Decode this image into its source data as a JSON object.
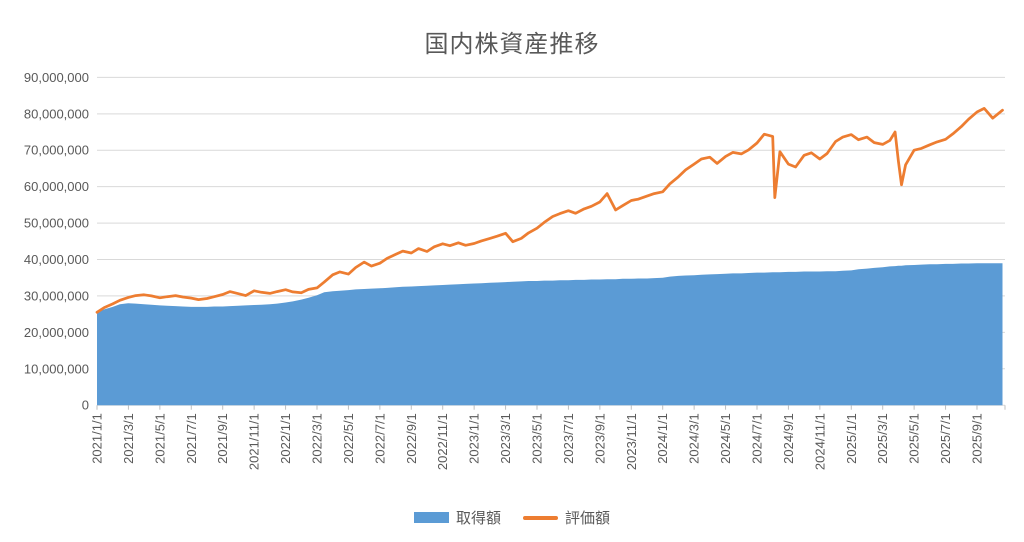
{
  "title": "国内株資産推移",
  "legend": {
    "acquisition_label": "取得額",
    "evaluation_label": "評価額"
  },
  "colors": {
    "acquisition_area": "#5B9BD5",
    "evaluation_line": "#ED7D31",
    "text_gray": "#595959",
    "gridline": "#D9D9D9",
    "axis_tick": "#BFBFBF"
  },
  "chart_data": {
    "type": "area",
    "subtype": "area series (取得額) + line series (評価額) combo",
    "title": "国内株資産推移",
    "xlabel": "",
    "ylabel": "",
    "unit": "JPY",
    "value_scale": 1000000,
    "ylim": [
      0,
      90000000
    ],
    "y_axis": {
      "min": 0,
      "max": 90000000,
      "step": 10000000,
      "tick_labels": [
        "0",
        "10,000,000",
        "20,000,000",
        "30,000,000",
        "40,000,000",
        "50,000,000",
        "60,000,000",
        "70,000,000",
        "80,000,000",
        "90,000,000"
      ]
    },
    "x_axis": {
      "tick_labels": [
        "2021/1/1",
        "2021/3/1",
        "2021/5/1",
        "2021/7/1",
        "2021/9/1",
        "2021/11/1",
        "2022/1/1",
        "2022/3/1",
        "2022/5/1",
        "2022/7/1",
        "2022/9/1",
        "2022/11/1",
        "2023/1/1",
        "2023/3/1",
        "2023/5/1",
        "2023/7/1",
        "2023/9/1",
        "2023/11/1",
        "2024/1/1",
        "2024/3/1",
        "2024/5/1",
        "2024/7/1",
        "2024/9/1",
        "2024/11/1",
        "2025/1/1",
        "2025/3/1",
        "2025/5/1",
        "2025/7/1",
        "2025/9/1"
      ],
      "label_rotation_deg": -90
    },
    "grid": "horizontal",
    "legend_position": "bottom",
    "x": [
      "2021/1/1",
      "2021/1/15",
      "2021/2/1",
      "2021/2/15",
      "2021/3/1",
      "2021/3/15",
      "2021/4/1",
      "2021/4/15",
      "2021/5/1",
      "2021/5/15",
      "2021/6/1",
      "2021/6/15",
      "2021/7/1",
      "2021/7/15",
      "2021/8/1",
      "2021/8/15",
      "2021/9/1",
      "2021/9/15",
      "2021/10/1",
      "2021/10/15",
      "2021/11/1",
      "2021/11/15",
      "2021/12/1",
      "2021/12/15",
      "2022/1/1",
      "2022/1/15",
      "2022/2/1",
      "2022/2/15",
      "2022/3/1",
      "2022/3/15",
      "2022/4/1",
      "2022/4/15",
      "2022/5/1",
      "2022/5/15",
      "2022/6/1",
      "2022/6/15",
      "2022/7/1",
      "2022/7/15",
      "2022/8/1",
      "2022/8/15",
      "2022/9/1",
      "2022/9/15",
      "2022/10/1",
      "2022/10/15",
      "2022/11/1",
      "2022/11/15",
      "2022/12/1",
      "2022/12/15",
      "2023/1/1",
      "2023/1/15",
      "2023/2/1",
      "2023/2/15",
      "2023/3/1",
      "2023/3/15",
      "2023/4/1",
      "2023/4/15",
      "2023/5/1",
      "2023/5/15",
      "2023/6/1",
      "2023/6/15",
      "2023/7/1",
      "2023/7/15",
      "2023/8/1",
      "2023/8/15",
      "2023/9/1",
      "2023/9/15",
      "2023/10/1",
      "2023/10/15",
      "2023/11/1",
      "2023/11/15",
      "2023/12/1",
      "2023/12/15",
      "2024/1/1",
      "2024/1/15",
      "2024/2/1",
      "2024/2/15",
      "2024/3/1",
      "2024/3/15",
      "2024/4/1",
      "2024/4/15",
      "2024/5/1",
      "2024/5/15",
      "2024/6/1",
      "2024/6/15",
      "2024/7/1",
      "2024/7/15",
      "2024/8/1",
      "2024/8/5",
      "2024/8/15",
      "2024/9/1",
      "2024/9/15",
      "2024/10/1",
      "2024/10/15",
      "2024/11/1",
      "2024/11/15",
      "2024/12/1",
      "2024/12/15",
      "2025/1/1",
      "2025/1/15",
      "2025/2/1",
      "2025/2/15",
      "2025/3/1",
      "2025/3/15",
      "2025/3/25",
      "2025/4/1",
      "2025/4/7",
      "2025/4/15",
      "2025/5/1",
      "2025/5/15",
      "2025/6/1",
      "2025/6/15",
      "2025/7/1",
      "2025/7/15",
      "2025/8/1",
      "2025/8/15",
      "2025/9/1",
      "2025/9/15",
      "2025/10/1",
      "2025/10/20"
    ],
    "series": [
      {
        "name": "取得額",
        "type": "area",
        "color": "#5B9BD5",
        "values_million": [
          25.5,
          26.3,
          27.0,
          27.7,
          28.0,
          27.9,
          27.7,
          27.6,
          27.4,
          27.3,
          27.2,
          27.1,
          27.0,
          27.0,
          27.0,
          27.1,
          27.1,
          27.2,
          27.3,
          27.4,
          27.5,
          27.6,
          27.7,
          27.9,
          28.2,
          28.5,
          29.0,
          29.5,
          30.2,
          31.0,
          31.3,
          31.4,
          31.6,
          31.8,
          31.9,
          32.0,
          32.1,
          32.2,
          32.4,
          32.5,
          32.6,
          32.7,
          32.8,
          32.9,
          33.0,
          33.1,
          33.2,
          33.3,
          33.4,
          33.5,
          33.6,
          33.7,
          33.8,
          33.9,
          34.0,
          34.1,
          34.1,
          34.2,
          34.2,
          34.3,
          34.3,
          34.4,
          34.4,
          34.5,
          34.5,
          34.6,
          34.6,
          34.7,
          34.7,
          34.8,
          34.8,
          34.9,
          35.0,
          35.3,
          35.5,
          35.6,
          35.7,
          35.8,
          35.9,
          36.0,
          36.1,
          36.2,
          36.2,
          36.3,
          36.4,
          36.4,
          36.5,
          36.5,
          36.5,
          36.6,
          36.6,
          36.7,
          36.7,
          36.7,
          36.8,
          36.8,
          36.9,
          37.0,
          37.3,
          37.5,
          37.7,
          37.9,
          38.1,
          38.2,
          38.3,
          38.3,
          38.4,
          38.5,
          38.6,
          38.7,
          38.7,
          38.8,
          38.8,
          38.9,
          38.9,
          39.0,
          39.0,
          39.0,
          39.0
        ]
      },
      {
        "name": "評価額",
        "type": "line",
        "color": "#ED7D31",
        "values_million": [
          25.5,
          26.8,
          27.8,
          28.8,
          29.6,
          30.1,
          30.3,
          30.0,
          29.5,
          29.8,
          30.1,
          29.7,
          29.4,
          29.0,
          29.3,
          29.8,
          30.4,
          31.2,
          30.6,
          30.1,
          31.4,
          31.0,
          30.7,
          31.2,
          31.7,
          31.1,
          30.9,
          31.8,
          32.2,
          33.8,
          35.8,
          36.6,
          36.0,
          37.8,
          39.3,
          38.2,
          39.0,
          40.3,
          41.4,
          42.3,
          41.8,
          43.0,
          42.2,
          43.5,
          44.3,
          43.8,
          44.6,
          43.9,
          44.4,
          45.1,
          45.8,
          46.4,
          47.2,
          44.9,
          45.8,
          47.3,
          48.6,
          50.2,
          51.8,
          52.6,
          53.4,
          52.7,
          53.9,
          54.6,
          55.8,
          58.1,
          53.6,
          54.8,
          56.2,
          56.6,
          57.4,
          58.1,
          58.6,
          60.8,
          62.7,
          64.6,
          66.2,
          67.6,
          68.1,
          66.4,
          68.3,
          69.4,
          69.0,
          70.1,
          72.0,
          74.4,
          73.8,
          57.0,
          69.6,
          66.2,
          65.4,
          68.6,
          69.3,
          67.6,
          69.1,
          72.4,
          73.6,
          74.3,
          72.9,
          73.6,
          72.1,
          71.6,
          72.7,
          75.0,
          67.0,
          60.5,
          66.0,
          70.0,
          70.5,
          71.5,
          72.3,
          73.0,
          74.5,
          76.5,
          78.5,
          80.5,
          81.5,
          78.8,
          81.0
        ]
      }
    ]
  }
}
